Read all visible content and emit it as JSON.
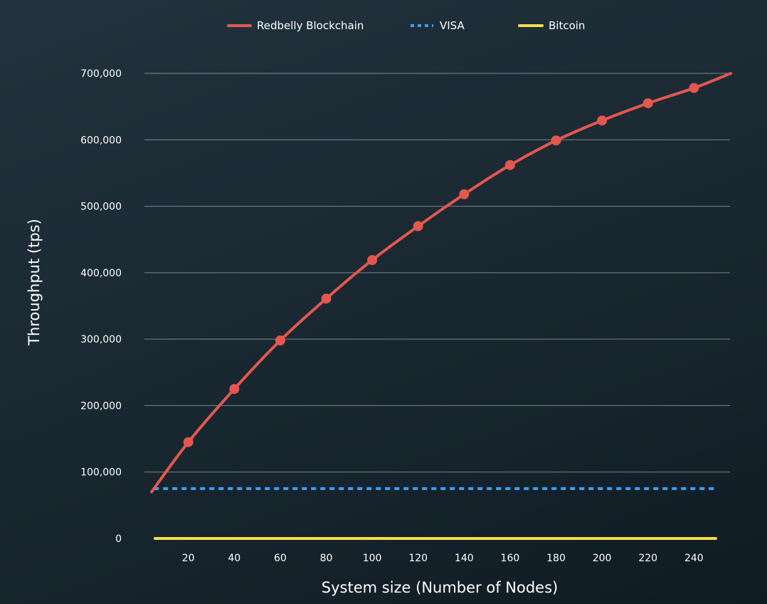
{
  "chart_data": {
    "type": "line",
    "title": "",
    "xlabel": "System size (Number of Nodes)",
    "ylabel": "Throughput (tps)",
    "x_ticks": [
      20,
      40,
      60,
      80,
      100,
      120,
      140,
      160,
      180,
      200,
      220,
      240
    ],
    "y_ticks": [
      0,
      100000,
      200000,
      300000,
      400000,
      500000,
      600000,
      700000
    ],
    "y_tick_labels": [
      "0",
      "100,000",
      "200,000",
      "300,000",
      "400,000",
      "500,000",
      "600,000",
      "700,000"
    ],
    "xlim": [
      4,
      256
    ],
    "ylim": [
      0,
      700000
    ],
    "grid": true,
    "legend": "top-center",
    "series": [
      {
        "name": "Redbelly Blockchain",
        "color": "#e4574f",
        "style": "solid-markers",
        "x": [
          4,
          20,
          40,
          60,
          80,
          100,
          120,
          140,
          160,
          180,
          200,
          220,
          240,
          256
        ],
        "y": [
          70000,
          145000,
          225000,
          298000,
          361000,
          419000,
          470000,
          518000,
          562000,
          599000,
          629000,
          655000,
          678000,
          700000
        ],
        "markers_x": [
          20,
          40,
          60,
          80,
          100,
          120,
          140,
          160,
          180,
          200,
          220,
          240
        ]
      },
      {
        "name": "VISA",
        "color": "#3f9cf5",
        "style": "dotted",
        "x": [
          5,
          250
        ],
        "y": [
          75000,
          75000
        ]
      },
      {
        "name": "Bitcoin",
        "color": "#f5dd48",
        "style": "solid",
        "x": [
          5,
          250
        ],
        "y": [
          0,
          0
        ]
      }
    ]
  }
}
